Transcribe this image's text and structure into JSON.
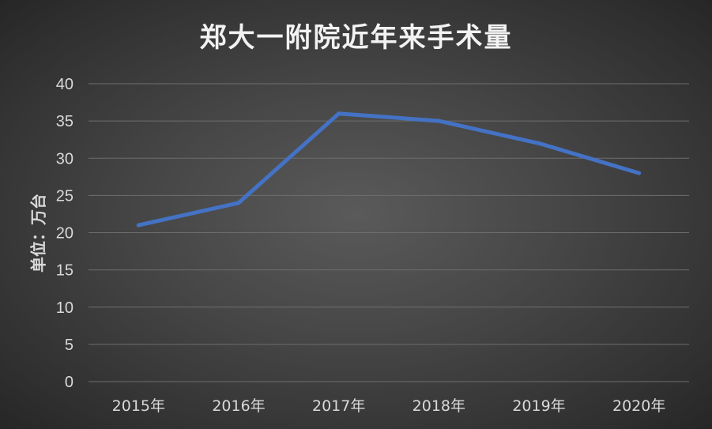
{
  "chart_data": {
    "type": "line",
    "title": "郑大一附院近年来手术量",
    "xlabel": "",
    "ylabel": "单位：万台",
    "categories": [
      "2015年",
      "2016年",
      "2017年",
      "2018年",
      "2019年",
      "2020年"
    ],
    "series": [
      {
        "values": [
          21,
          24,
          36,
          35,
          32,
          28
        ]
      }
    ],
    "ylim": [
      0,
      40
    ],
    "yticks": [
      0,
      5,
      10,
      15,
      20,
      25,
      30,
      35,
      40
    ],
    "grid": true,
    "legend": "none",
    "colors": {
      "line": "#4472c4",
      "grid": "#6e6e6e",
      "text": "#d9d9d9",
      "title": "#f2f2f2"
    }
  }
}
